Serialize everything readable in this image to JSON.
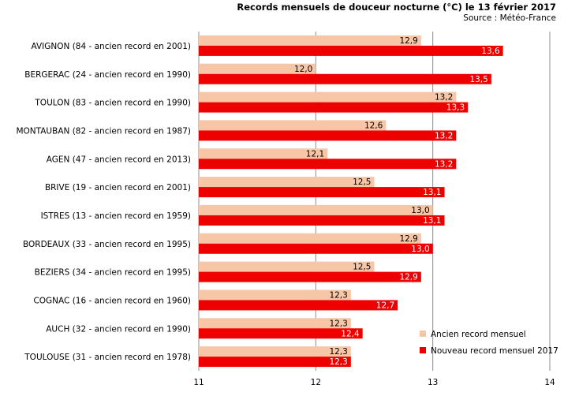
{
  "chart_data": {
    "type": "bar",
    "orientation": "horizontal",
    "title": "Records mensuels de douceur nocturne (°C) le 13 février 2017",
    "subtitle": "Source : Météo-France",
    "categories": [
      "AVIGNON (84 - ancien record en 2001)",
      "BERGERAC (24 - ancien record en 1990)",
      "TOULON (83 - ancien record en 1990)",
      "MONTAUBAN (82 - ancien record en 1987)",
      "AGEN (47 - ancien record en 2013)",
      "BRIVE (19 - ancien record en 2001)",
      "ISTRES (13 - ancien record en 1959)",
      "BORDEAUX (33 - ancien record en 1995)",
      "BEZIERS (34 - ancien record en 1995)",
      "COGNAC (16 - ancien record en 1960)",
      "AUCH (32 - ancien record en 1990)",
      "TOULOUSE (31 - ancien record en 1978)"
    ],
    "series": [
      {
        "name": "Ancien record mensuel",
        "color": "#f7c6a6",
        "values": [
          12.9,
          12.0,
          13.2,
          12.6,
          12.1,
          12.5,
          13.0,
          12.9,
          12.5,
          12.3,
          12.3,
          12.3
        ],
        "labels": [
          "12,9",
          "12,0",
          "13,2",
          "12,6",
          "12,1",
          "12,5",
          "13,0",
          "12,9",
          "12,5",
          "12,3",
          "12,3",
          "12,3"
        ]
      },
      {
        "name": "Nouveau record mensuel 2017",
        "color": "#ee0000",
        "values": [
          13.6,
          13.5,
          13.3,
          13.2,
          13.2,
          13.1,
          13.1,
          13.0,
          12.9,
          12.7,
          12.4,
          12.3
        ],
        "labels": [
          "13,6",
          "13,5",
          "13,3",
          "13,2",
          "13,2",
          "13,1",
          "13,1",
          "13,0",
          "12,9",
          "12,7",
          "12,4",
          "12,3"
        ]
      }
    ],
    "xlim": [
      11,
      14
    ],
    "xticks": [
      "11",
      "12",
      "13",
      "14"
    ],
    "grid": true,
    "legend_position": "bottom-right"
  }
}
